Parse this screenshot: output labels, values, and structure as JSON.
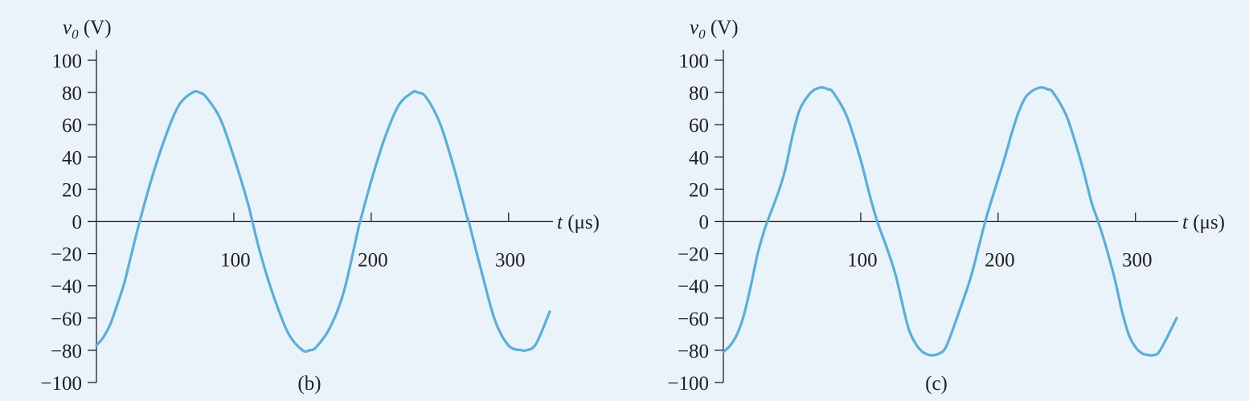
{
  "colors": {
    "background": "#e9f3f9",
    "axis": "#231f20",
    "series": "#5aaedb"
  },
  "chart_data": [
    {
      "type": "line",
      "panel_label": "(b)",
      "ylabel": "v",
      "ylabel_subscript": "0",
      "ylabel_unit": " (V)",
      "xlabel": "t",
      "xlabel_unit": " (μs)",
      "xlim": [
        0,
        330
      ],
      "ylim": [
        -100,
        100
      ],
      "xticks": [
        100,
        200,
        300
      ],
      "xtick_labels": [
        "100",
        "200",
        "300"
      ],
      "yticks": [
        100,
        80,
        60,
        40,
        20,
        0,
        -20,
        -40,
        -60,
        -80,
        -100
      ],
      "ytick_labels": [
        "100",
        "80",
        "60",
        "40",
        "20",
        "0",
        "−20",
        "−40",
        "−60",
        "−80",
        "−100"
      ],
      "grid": false,
      "series": [
        {
          "x": [
            0,
            5,
            10,
            15,
            20,
            25,
            31.5,
            40,
            50,
            60,
            70,
            75,
            80,
            90,
            100,
            110,
            113.5,
            120,
            130,
            140,
            150,
            155,
            160,
            170,
            180,
            190,
            192,
            200,
            210,
            220,
            230,
            234,
            240,
            250,
            260,
            270,
            271,
            280,
            290,
            300,
            310,
            313,
            320,
            330
          ],
          "y": [
            -77,
            -72,
            -64,
            -52,
            -39,
            -22,
            0,
            26,
            52,
            72,
            80,
            80,
            77,
            64,
            40,
            12,
            0,
            -22,
            -49,
            -70,
            -80,
            -80,
            -78,
            -66,
            -44,
            -7,
            0,
            25,
            52,
            72,
            80,
            80,
            77,
            61,
            34,
            2,
            0,
            -30,
            -61,
            -77,
            -80,
            -80,
            -76,
            -56
          ]
        }
      ]
    },
    {
      "type": "line",
      "panel_label": "(c)",
      "ylabel": "v",
      "ylabel_subscript": "0",
      "ylabel_unit": " (V)",
      "xlabel": "t",
      "xlabel_unit": " (μs)",
      "xlim": [
        0,
        330
      ],
      "ylim": [
        -100,
        100
      ],
      "xticks": [
        100,
        200,
        300
      ],
      "xtick_labels": [
        "100",
        "200",
        "300"
      ],
      "yticks": [
        100,
        80,
        60,
        40,
        20,
        0,
        -20,
        -40,
        -60,
        -80,
        -100
      ],
      "ytick_labels": [
        "100",
        "80",
        "60",
        "40",
        "20",
        "0",
        "−20",
        "−40",
        "−60",
        "−80",
        "−100"
      ],
      "grid": false,
      "series": [
        {
          "x": [
            0,
            5,
            10,
            15,
            20,
            25,
            30,
            33,
            40,
            45,
            50,
            55,
            60,
            65,
            70,
            73,
            76,
            80,
            90,
            100,
            106,
            112,
            118,
            125,
            130,
            135,
            140,
            145,
            150,
            153,
            157,
            162,
            170,
            180,
            187,
            192,
            197,
            205,
            210,
            215,
            220,
            225,
            230,
            233,
            236,
            240,
            250,
            260,
            268,
            272,
            278,
            285,
            290,
            295,
            300,
            305,
            310,
            313,
            318,
            330
          ],
          "y": [
            -81,
            -77,
            -70,
            -58,
            -40,
            -20,
            -5,
            2,
            18,
            32,
            52,
            68,
            76,
            81,
            83,
            83,
            82,
            80,
            65,
            38,
            18,
            0,
            -14,
            -32,
            -50,
            -67,
            -76,
            -81,
            -83,
            -83,
            -82,
            -78,
            -60,
            -35,
            -12,
            4,
            18,
            40,
            55,
            68,
            77,
            81,
            83,
            83,
            82,
            80,
            65,
            38,
            12,
            2,
            -14,
            -36,
            -55,
            -70,
            -78,
            -82,
            -83,
            -83,
            -80,
            -60
          ]
        }
      ]
    }
  ]
}
